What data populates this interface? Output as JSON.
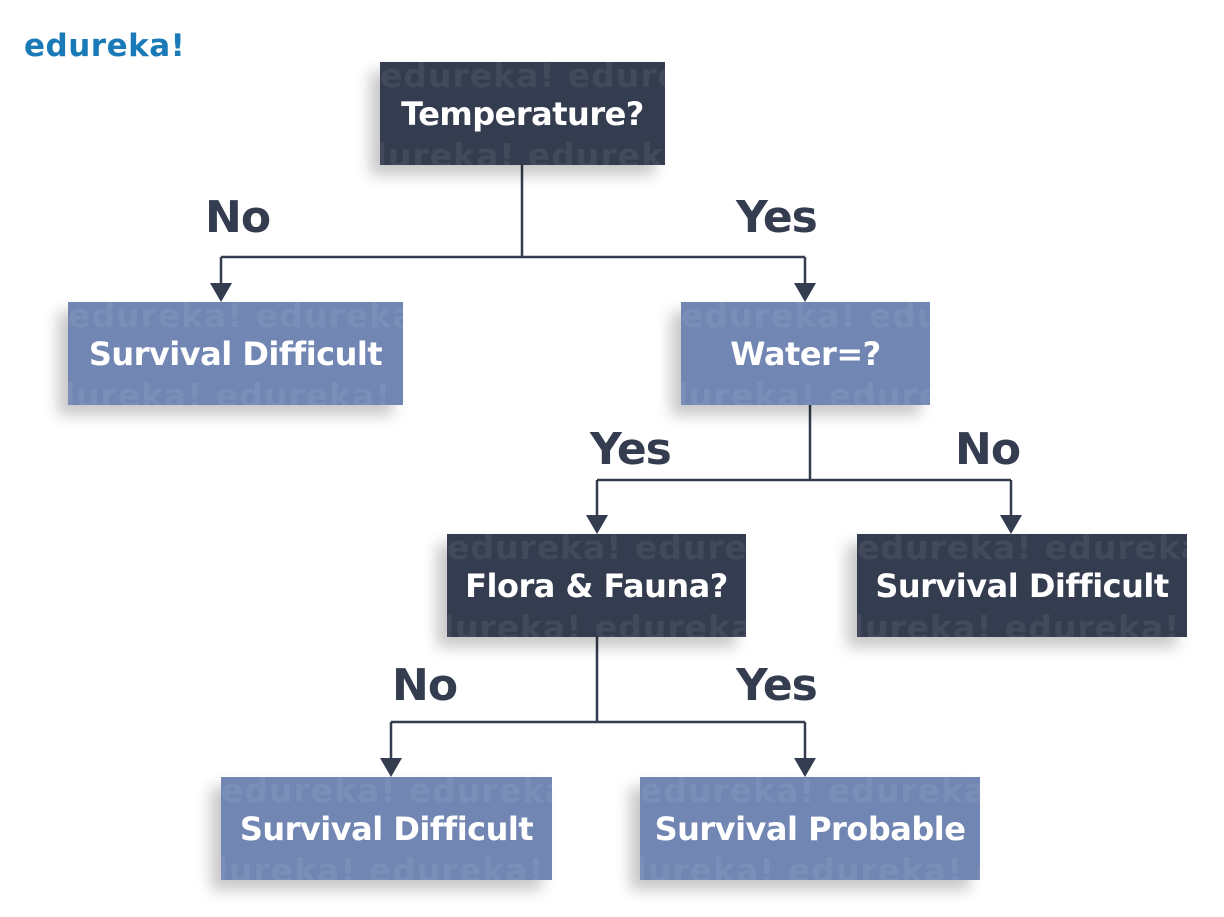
{
  "logo": {
    "text": "edureka!"
  },
  "watermark": "edureka!   edureka!   edureka!",
  "colors": {
    "dark": "#343c4f",
    "light": "#7286b3",
    "brand": "#1a7ab8"
  },
  "nodes": {
    "temperature": {
      "label": "Temperature?"
    },
    "survival_difficult_1": {
      "label": "Survival Difficult"
    },
    "water": {
      "label": "Water=?"
    },
    "flora_fauna": {
      "label": "Flora & Fauna?"
    },
    "survival_difficult_2": {
      "label": "Survival Difficult"
    },
    "survival_difficult_3": {
      "label": "Survival Difficult"
    },
    "survival_probable": {
      "label": "Survival Probable"
    }
  },
  "edges": {
    "temp_no": "No",
    "temp_yes": "Yes",
    "water_yes": "Yes",
    "water_no": "No",
    "flora_no": "No",
    "flora_yes": "Yes"
  }
}
